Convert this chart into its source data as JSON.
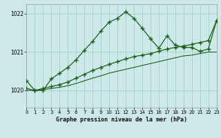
{
  "title": "Graphe pression niveau de la mer (hPa)",
  "bg_color": "#cce8e8",
  "grid_color": "#aacccc",
  "line_color": "#1a5e1a",
  "ylim": [
    1019.55,
    1022.25
  ],
  "yticks": [
    1020,
    1021,
    1022
  ],
  "xlim": [
    0,
    23
  ],
  "xticks": [
    0,
    1,
    2,
    3,
    4,
    5,
    6,
    7,
    8,
    9,
    10,
    11,
    12,
    13,
    14,
    15,
    16,
    17,
    18,
    19,
    20,
    21,
    22,
    23
  ],
  "series1": [
    1020.25,
    1020.0,
    1020.0,
    1020.3,
    1020.45,
    1020.6,
    1020.8,
    1021.05,
    1021.28,
    1021.55,
    1021.78,
    1021.88,
    1022.05,
    1021.88,
    1021.62,
    1021.35,
    1021.1,
    1021.42,
    1021.18,
    1021.12,
    1021.12,
    1021.02,
    1021.08,
    1021.82
  ],
  "series2": [
    1020.05,
    1020.0,
    1020.05,
    1020.1,
    1020.15,
    1020.22,
    1020.32,
    1020.42,
    1020.52,
    1020.6,
    1020.68,
    1020.75,
    1020.82,
    1020.88,
    1020.92,
    1020.96,
    1021.02,
    1021.08,
    1021.12,
    1021.16,
    1021.2,
    1021.25,
    1021.3,
    1021.82
  ],
  "series3": [
    1020.0,
    1020.0,
    1020.02,
    1020.05,
    1020.08,
    1020.12,
    1020.18,
    1020.25,
    1020.32,
    1020.38,
    1020.45,
    1020.5,
    1020.55,
    1020.6,
    1020.65,
    1020.7,
    1020.75,
    1020.8,
    1020.85,
    1020.9,
    1020.92,
    1020.96,
    1021.0,
    1021.0
  ]
}
